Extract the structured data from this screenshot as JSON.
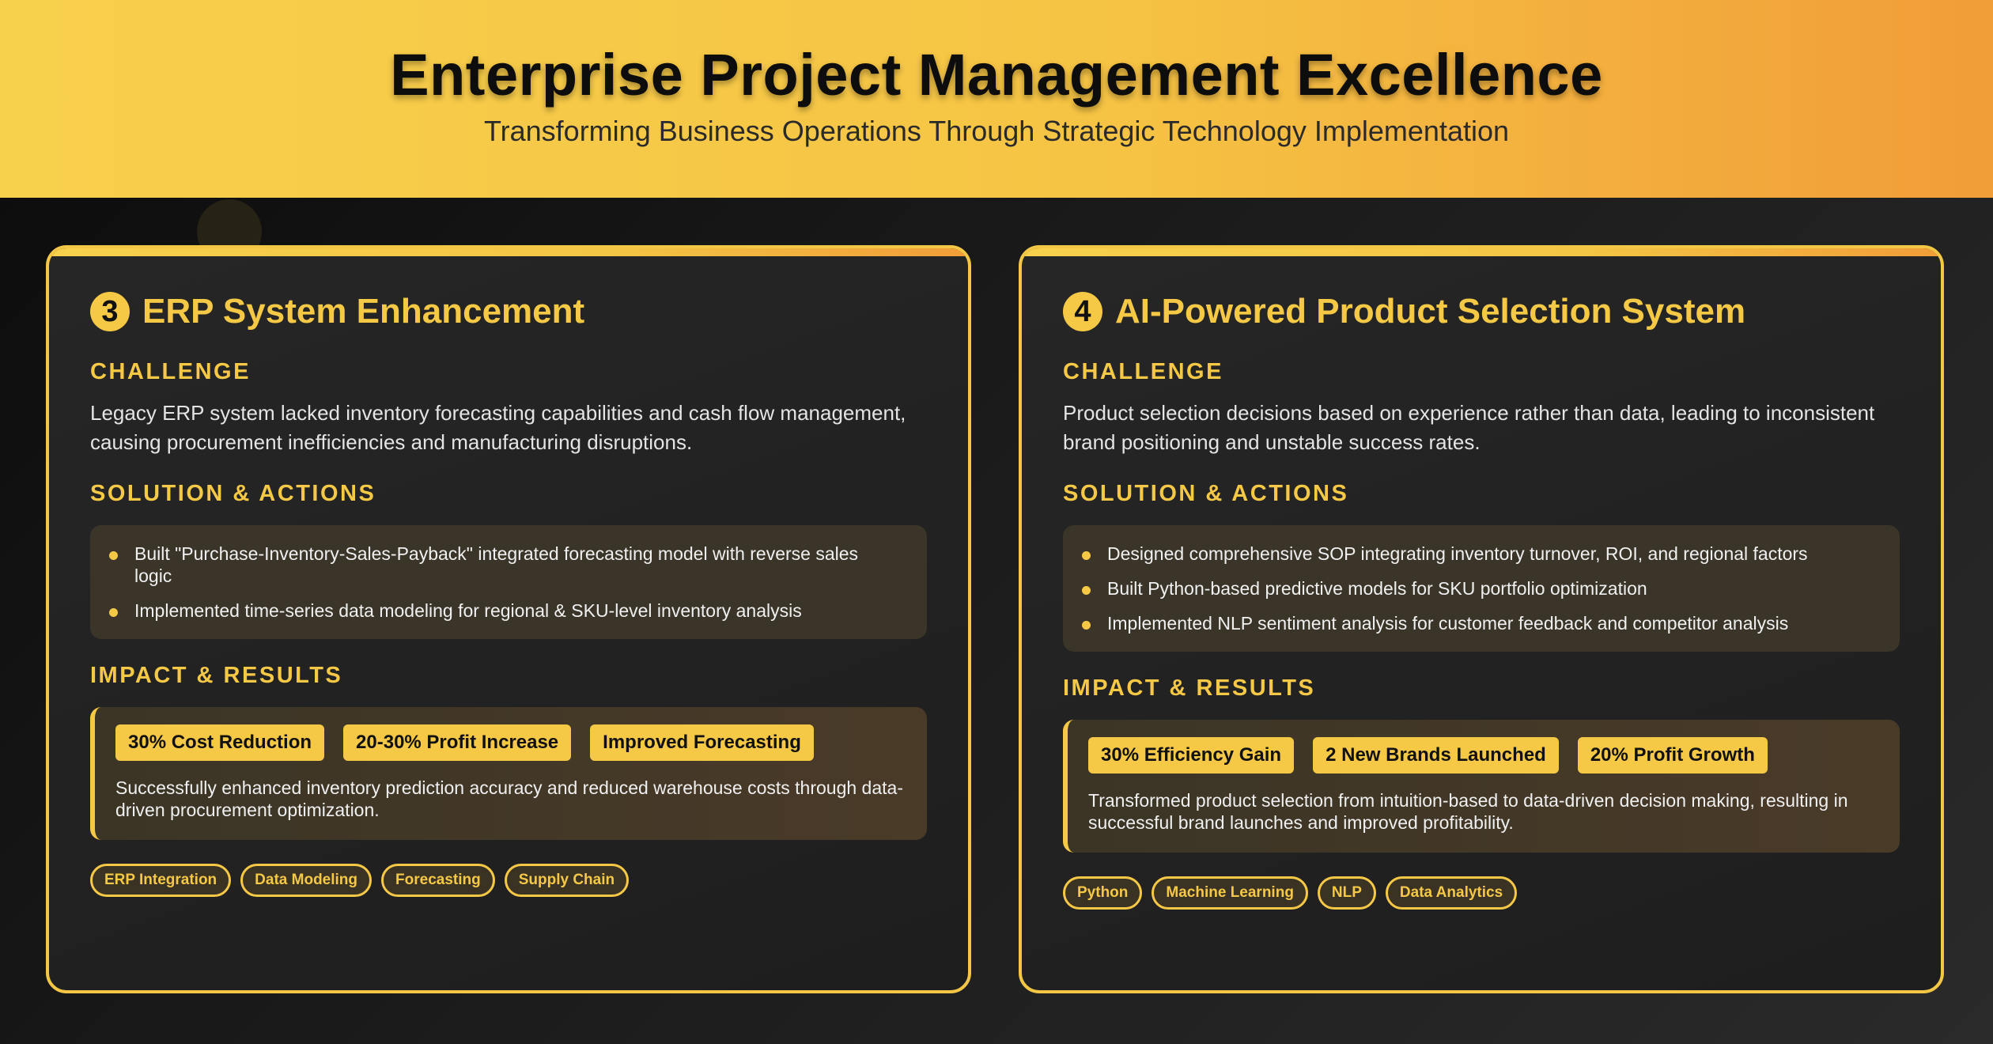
{
  "header": {
    "title": "Enterprise Project Management Excellence",
    "subtitle": "Transforming Business Operations Through Strategic Technology Implementation"
  },
  "cards": [
    {
      "number": "3",
      "title": "ERP System Enhancement",
      "challenge_label": "CHALLENGE",
      "challenge_text": "Legacy ERP system lacked inventory forecasting capabilities and cash flow management, causing procurement inefficiencies and manufacturing disruptions.",
      "solution_label": "SOLUTION & ACTIONS",
      "actions": [
        "Built \"Purchase-Inventory-Sales-Payback\" integrated forecasting model with reverse sales logic",
        "Implemented time-series data modeling for regional & SKU-level inventory analysis"
      ],
      "impact_label": "IMPACT & RESULTS",
      "metrics": [
        "30% Cost Reduction",
        "20-30% Profit Increase",
        "Improved Forecasting"
      ],
      "impact_text": "Successfully enhanced inventory prediction accuracy and reduced warehouse costs through data-driven procurement optimization.",
      "tags": [
        "ERP Integration",
        "Data Modeling",
        "Forecasting",
        "Supply Chain"
      ]
    },
    {
      "number": "4",
      "title": "AI-Powered Product Selection System",
      "challenge_label": "CHALLENGE",
      "challenge_text": "Product selection decisions based on experience rather than data, leading to inconsistent brand positioning and unstable success rates.",
      "solution_label": "SOLUTION & ACTIONS",
      "actions": [
        "Designed comprehensive SOP integrating inventory turnover, ROI, and regional factors",
        "Built Python-based predictive models for SKU portfolio optimization",
        "Implemented NLP sentiment analysis for customer feedback and competitor analysis"
      ],
      "impact_label": "IMPACT & RESULTS",
      "metrics": [
        "30% Efficiency Gain",
        "2 New Brands Launched",
        "20% Profit Growth"
      ],
      "impact_text": "Transformed product selection from intuition-based to data-driven decision making, resulting in successful brand launches and improved profitability.",
      "tags": [
        "Python",
        "Machine Learning",
        "NLP",
        "Data Analytics"
      ]
    }
  ],
  "colors": {
    "accent": "#f5c846",
    "header_gradient_start": "#f7d04c",
    "header_gradient_end": "#f19d38",
    "background": "#1c1c1c"
  }
}
